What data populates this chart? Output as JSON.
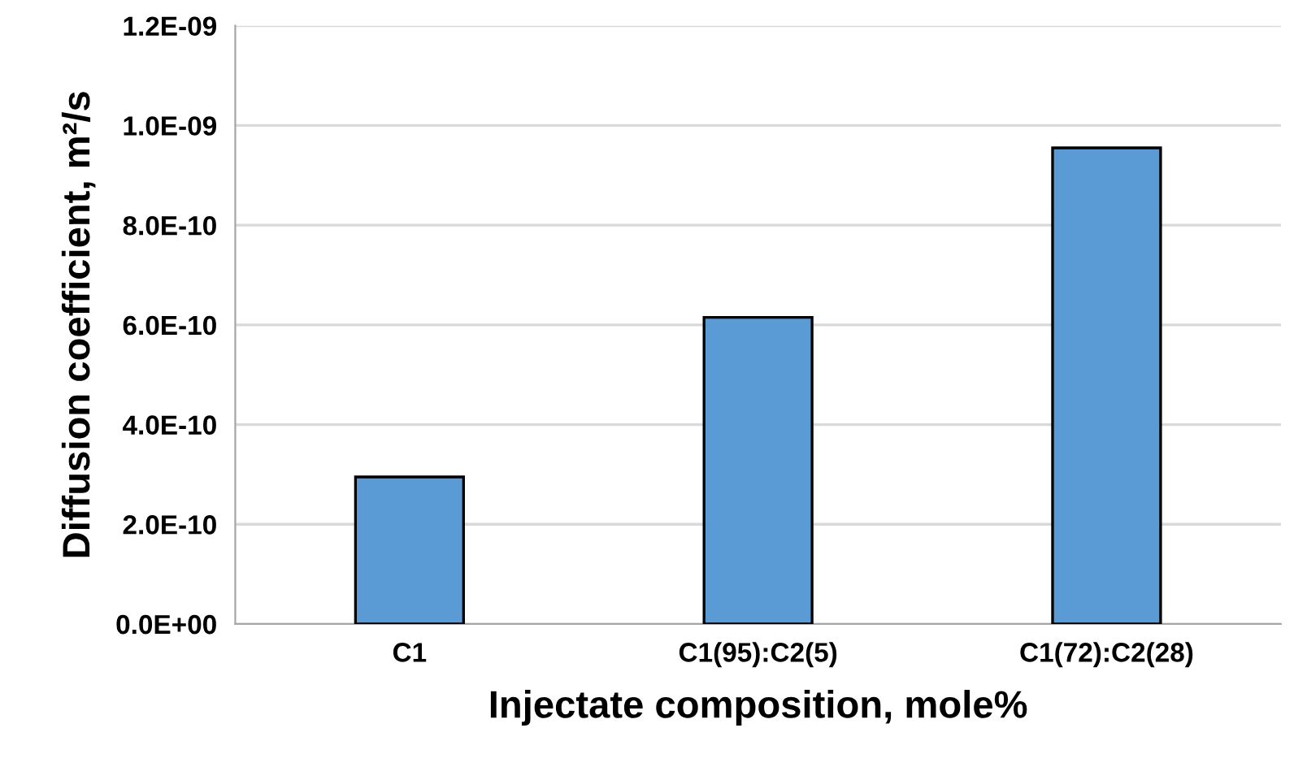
{
  "chart_data": {
    "type": "bar",
    "xlabel": "Injectate composition, mole%",
    "ylabel": "Diffusion coefficient, m²/s",
    "categories": [
      "C1",
      "C1(95):C2(5)",
      "C1(72):C2(28)"
    ],
    "values": [
      2.95e-10,
      6.15e-10,
      9.55e-10
    ],
    "color": "#5b9bd5",
    "ylim": [
      0,
      1.2e-09
    ],
    "yticks": [
      {
        "value": 0,
        "label": "0.0E+00"
      },
      {
        "value": 2e-10,
        "label": "2.0E-10"
      },
      {
        "value": 4e-10,
        "label": "4.0E-10"
      },
      {
        "value": 6e-10,
        "label": "6.0E-10"
      },
      {
        "value": 8e-10,
        "label": "8.0E-10"
      },
      {
        "value": 1e-09,
        "label": "1.0E-09"
      },
      {
        "value": 1.2e-09,
        "label": "1.2E-09"
      }
    ],
    "grid": "y",
    "legend": false
  }
}
